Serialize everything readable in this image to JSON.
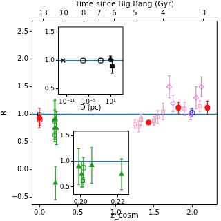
{
  "chart_data": [
    {
      "type": "scatter",
      "x_label": "z_cosm",
      "y_label": "R",
      "x2_label": "Time since Big Bang (Gyr)",
      "xlim": [
        -0.1,
        2.33
      ],
      "xticks": [
        {
          "value": 0,
          "label": "0.0"
        },
        {
          "value": 0.5,
          "label": "0.5"
        },
        {
          "value": 1,
          "label": "1.0"
        },
        {
          "value": 1.5,
          "label": "1.5"
        },
        {
          "value": 2,
          "label": "2.0"
        }
      ],
      "ylim": [
        -0.65,
        2.7
      ],
      "yticks": [
        {
          "value": -0.5,
          "label": "−0.5"
        },
        {
          "value": 0,
          "label": "0.0"
        },
        {
          "value": 0.5,
          "label": "0.5"
        },
        {
          "value": 1,
          "label": "1.0"
        },
        {
          "value": 1.5,
          "label": "1.5"
        },
        {
          "value": 2,
          "label": "2.0"
        },
        {
          "value": 2.5,
          "label": "2.5"
        }
      ],
      "x2ticks": [
        {
          "value": 0.05,
          "label": "13"
        },
        {
          "value": 0.32,
          "label": "10"
        },
        {
          "value": 0.58,
          "label": "8"
        },
        {
          "value": 0.78,
          "label": "7"
        },
        {
          "value": 0.98,
          "label": "6"
        },
        {
          "value": 1.25,
          "label": "5"
        },
        {
          "value": 1.62,
          "label": "4"
        },
        {
          "value": 2.15,
          "label": "3"
        }
      ],
      "hline": 1,
      "grid": false,
      "series": [
        {
          "color": "#e8141b",
          "marker": "circle",
          "x": [
            0.0,
            1.43,
            1.82,
            2.2
          ],
          "values": [
            0.93,
            0.85,
            1.12,
            1.12
          ],
          "errors": [
            0.18,
            0.03,
            0.1,
            0.12
          ]
        },
        {
          "color": "#e8141b",
          "marker": "open_circle",
          "x": [
            0.005
          ],
          "values": [
            0.9
          ],
          "errors": [
            0.1
          ]
        },
        {
          "color": "#000000",
          "marker": "open_square",
          "x": [
            0.0
          ],
          "values": [
            1.0
          ]
        },
        {
          "color": "#229922",
          "marker": "triangle",
          "x": [
            0.199,
            0.2005,
            0.206,
            0.222,
            0.21
          ],
          "values": [
            0.9,
            0.75,
            0.92,
            0.75,
            -0.25
          ],
          "errors": [
            0.35,
            0.25,
            0.35,
            0.3,
            0.3
          ]
        },
        {
          "color": "#229922",
          "marker": "open_circle",
          "x": [
            0.2015
          ],
          "values": [
            0.88
          ],
          "errors": [
            0.2
          ]
        },
        {
          "color": "#229922",
          "marker": "open_square",
          "x": [
            0.2012
          ],
          "values": [
            0.62
          ],
          "errors": [
            0.12
          ]
        },
        {
          "color": "#f0a0c8",
          "marker": "open_square",
          "x": [
            1.25,
            1.3,
            1.33,
            1.5,
            1.55,
            1.62,
            1.9,
            2.1
          ],
          "values": [
            0.82,
            0.78,
            0.9,
            0.88,
            0.95,
            1.05,
            1.1,
            1.15
          ],
          "errors": [
            0.08,
            0.1,
            0.1,
            0.08,
            0.12,
            0.15,
            0.12,
            0.1
          ]
        },
        {
          "color": "#d88ad8",
          "marker": "open_diamond",
          "x": [
            1.7,
            1.75,
            1.98,
            2.05,
            2.12
          ],
          "values": [
            1.5,
            1.2,
            1.0,
            1.3,
            1.5
          ],
          "errors": [
            0.2,
            0.15,
            0.1,
            0.2,
            0.18
          ]
        },
        {
          "color": "#1f3fd8",
          "marker": "open_circle",
          "x": [
            2.0
          ],
          "values": [
            1.03
          ],
          "errors": [
            0.08
          ]
        }
      ]
    },
    {
      "type": "scatter",
      "log": "x",
      "x_label": "D (pc)",
      "xlim": [
        4e-14,
        30000
      ],
      "xticks": [
        {
          "value": 1e-11,
          "label": "10⁻¹¹"
        },
        {
          "value": 1e-05,
          "label": "10⁻⁵"
        },
        {
          "value": 10,
          "label": "10¹"
        }
      ],
      "ylim": [
        0.4,
        1.6
      ],
      "yticks": [
        {
          "value": 0.5,
          "label": "0.5"
        },
        {
          "value": 1,
          "label": "1.0"
        },
        {
          "value": 1.5,
          "label": "1.5"
        }
      ],
      "hline": 1,
      "grid": false,
      "series": [
        {
          "color": "#000000",
          "marker": "cross",
          "x": [
            1e-12
          ],
          "values": [
            1.0
          ]
        },
        {
          "color": "#000000",
          "marker": "open_circle",
          "x": [
            3e-07,
            0.02
          ],
          "values": [
            1.0,
            1.0
          ]
        },
        {
          "color": "#000000",
          "marker": "triangle",
          "x": [
            10
          ],
          "values": [
            1.03
          ],
          "errors": [
            0.05
          ]
        },
        {
          "color": "#000000",
          "marker": "square",
          "x": [
            30
          ],
          "values": [
            0.9
          ],
          "errors": [
            0.12
          ]
        }
      ]
    },
    {
      "type": "scatter",
      "xlim": [
        0.196,
        0.226
      ],
      "xticks": [
        {
          "value": 0.2,
          "label": "0.20"
        },
        {
          "value": 0.22,
          "label": "0.22"
        }
      ],
      "ylim": [
        0.35,
        1.6
      ],
      "yticks": [
        {
          "value": 0.5,
          "label": "0.5"
        },
        {
          "value": 1,
          "label": "1.0"
        },
        {
          "value": 1.5,
          "label": "1.5"
        }
      ],
      "hline": 1,
      "grid": false,
      "series": [
        {
          "color": "#229922",
          "marker": "triangle",
          "x": [
            0.199,
            0.2005,
            0.206,
            0.222
          ],
          "values": [
            0.9,
            0.75,
            0.92,
            0.75
          ],
          "errors": [
            0.35,
            0.25,
            0.35,
            0.3
          ]
        },
        {
          "color": "#229922",
          "marker": "open_circle",
          "x": [
            0.2015
          ],
          "values": [
            0.88
          ],
          "errors": [
            0.2
          ]
        },
        {
          "color": "#229922",
          "marker": "open_square",
          "x": [
            0.2012
          ],
          "values": [
            0.62
          ],
          "errors": [
            0.12
          ]
        }
      ]
    }
  ]
}
